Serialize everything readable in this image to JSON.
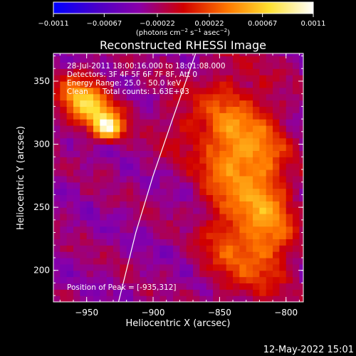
{
  "chart_data": {
    "type": "heatmap",
    "title": "Reconstructed RHESSI Image",
    "xlabel": "Heliocentric X (arcsec)",
    "ylabel": "Heliocentric Y (arcsec)",
    "xlim": [
      -975,
      -787
    ],
    "ylim": [
      175,
      372
    ],
    "x_ticks": [
      {
        "value": -950,
        "label": "−950"
      },
      {
        "value": -900,
        "label": "−900"
      },
      {
        "value": -850,
        "label": "−850"
      },
      {
        "value": -800,
        "label": "−800"
      }
    ],
    "y_ticks": [
      {
        "value": 200,
        "label": "200"
      },
      {
        "value": 250,
        "label": "250"
      },
      {
        "value": 300,
        "label": "300"
      },
      {
        "value": 350,
        "label": "350"
      }
    ],
    "colorbar": {
      "range": [
        -0.0011,
        0.0011
      ],
      "ticks": [
        {
          "value": -0.0011,
          "label": "−0.0011"
        },
        {
          "value": -0.00067,
          "label": "−0.00067"
        },
        {
          "value": -0.00022,
          "label": "−0.00022"
        },
        {
          "value": 0.00022,
          "label": "0.00022"
        },
        {
          "value": 0.00067,
          "label": "0.00067"
        },
        {
          "value": 0.0011,
          "label": "0.0011"
        }
      ],
      "label_prefix": "(photons cm",
      "label_exp1": "−2",
      "label_mid": " s",
      "label_exp2": "−1",
      "label_mid2": " asec",
      "label_exp3": "−2",
      "label_suffix": ")",
      "colors": [
        "#0000ff",
        "#4b00c8",
        "#8a00a8",
        "#d00000",
        "#ff7800",
        "#ffe030",
        "#ffffff"
      ]
    },
    "annotations": [
      "28-Jul-2011 18:00:16.000 to 18:01:08.000",
      "Detectors: 3F 4F 5F 6F 7F 8F, Att 0",
      "Energy Range: 25.0 - 50.0 keV",
      "Clean      Total counts: 1.63E+03"
    ],
    "peak_label": "Position of Peak = [-935,312]",
    "peak": {
      "x": -935,
      "y": 312
    },
    "limb": [
      [
        -926,
        175
      ],
      [
        -913,
        230
      ],
      [
        -900,
        275
      ],
      [
        -886,
        318
      ],
      [
        -872,
        360
      ],
      [
        -868,
        372
      ]
    ],
    "sources": [
      {
        "x": -934,
        "y": 313,
        "sx": 8,
        "sy": 7,
        "amp": 0.0011
      },
      {
        "x": -945,
        "y": 327,
        "sx": 14,
        "sy": 10,
        "amp": 0.0007
      },
      {
        "x": -955,
        "y": 342,
        "sx": 12,
        "sy": 12,
        "amp": 0.0006
      },
      {
        "x": -848,
        "y": 300,
        "sx": 14,
        "sy": 40,
        "amp": 0.00055
      },
      {
        "x": -822,
        "y": 292,
        "sx": 16,
        "sy": 34,
        "amp": 0.0006
      },
      {
        "x": -812,
        "y": 230,
        "sx": 14,
        "sy": 30,
        "amp": 0.00055
      },
      {
        "x": -840,
        "y": 215,
        "sx": 16,
        "sy": 26,
        "amp": 0.0004
      },
      {
        "x": -880,
        "y": 315,
        "sx": 14,
        "sy": 20,
        "amp": 0.00025
      }
    ]
  },
  "footer": {
    "timestamp": "12-May-2022 15:01"
  }
}
